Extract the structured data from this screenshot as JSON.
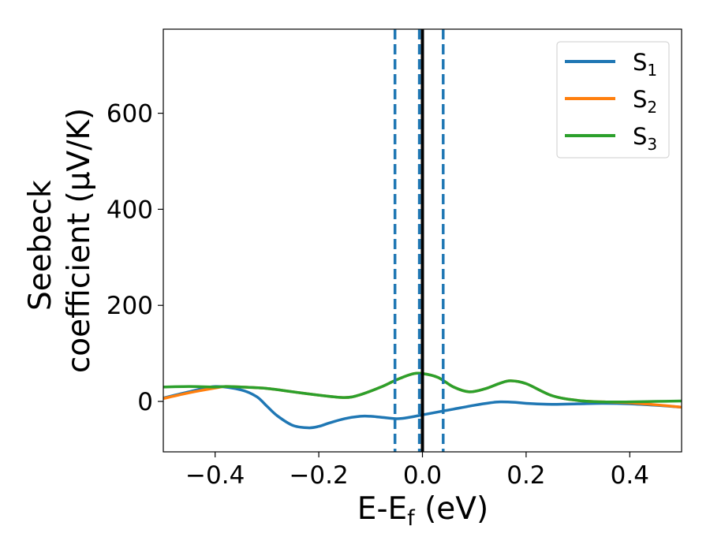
{
  "chart_data": {
    "type": "line",
    "xlabel": "E-E",
    "xlabel_sub": "f",
    "xlabel_unit": " (eV)",
    "ylabel_line1": "Seebeck",
    "ylabel_line2": "coefficient  (μV/K)",
    "xlim": [
      -0.5,
      0.5
    ],
    "ylim": [
      -105,
      775
    ],
    "xticks": [
      -0.4,
      -0.2,
      0.0,
      0.2,
      0.4
    ],
    "xtick_labels": [
      "−0.4",
      "−0.2",
      "0.0",
      "0.2",
      "0.4"
    ],
    "yticks": [
      0,
      200,
      400,
      600
    ],
    "ytick_labels": [
      "0",
      "200",
      "400",
      "600"
    ],
    "grid": false,
    "legend_position": "top-right",
    "series": [
      {
        "name": "S",
        "sub": "1",
        "color": "#1f77b4",
        "x": [
          -0.5,
          -0.45,
          -0.4,
          -0.35,
          -0.32,
          -0.3,
          -0.28,
          -0.25,
          -0.22,
          -0.2,
          -0.18,
          -0.15,
          -0.12,
          -0.1,
          -0.08,
          -0.05,
          -0.03,
          0.0,
          0.03,
          0.06,
          0.1,
          0.13,
          0.15,
          0.18,
          0.2,
          0.25,
          0.3,
          0.35,
          0.4,
          0.45,
          0.5
        ],
        "y": [
          7,
          20,
          31,
          24,
          10,
          -10,
          -30,
          -50,
          -55,
          -52,
          -45,
          -36,
          -31,
          -31,
          -33,
          -36,
          -34,
          -28,
          -22,
          -16,
          -8,
          -3,
          -1,
          -2,
          -4,
          -6,
          -5,
          -4,
          -5,
          -8,
          -12
        ]
      },
      {
        "name": "S",
        "sub": "2",
        "color": "#ff7f0e",
        "x": [
          -0.5,
          -0.45,
          -0.4,
          -0.38,
          -0.35,
          -0.3,
          -0.25,
          -0.2,
          -0.15,
          -0.12,
          -0.08,
          -0.05,
          -0.02,
          0.0,
          0.03,
          0.06,
          0.09,
          0.12,
          0.15,
          0.17,
          0.2,
          0.25,
          0.3,
          0.35,
          0.4,
          0.45,
          0.5
        ],
        "y": [
          6,
          18,
          28,
          31,
          30,
          27,
          20,
          13,
          8,
          14,
          30,
          45,
          57,
          58,
          50,
          30,
          20,
          26,
          38,
          43,
          37,
          12,
          2,
          -1,
          -3,
          -7,
          -12
        ]
      },
      {
        "name": "S",
        "sub": "3",
        "color": "#2ca02c",
        "x": [
          -0.5,
          -0.45,
          -0.4,
          -0.38,
          -0.35,
          -0.3,
          -0.25,
          -0.2,
          -0.15,
          -0.12,
          -0.08,
          -0.05,
          -0.02,
          0.0,
          0.03,
          0.06,
          0.09,
          0.12,
          0.15,
          0.17,
          0.2,
          0.25,
          0.3,
          0.35,
          0.4,
          0.45,
          0.5
        ],
        "y": [
          30,
          31,
          30,
          31,
          30,
          27,
          20,
          13,
          8,
          14,
          30,
          45,
          57,
          58,
          50,
          30,
          20,
          26,
          38,
          43,
          37,
          12,
          2,
          -1,
          -1,
          0,
          1
        ]
      }
    ],
    "vlines": [
      {
        "x": -0.053,
        "style": "dashed",
        "color": "#1f77b4"
      },
      {
        "x": -0.006,
        "style": "dashed",
        "color": "#1f77b4"
      },
      {
        "x": 0.04,
        "style": "dashed",
        "color": "#1f77b4"
      },
      {
        "x": 0.0,
        "style": "solid",
        "color": "#000000"
      }
    ]
  }
}
